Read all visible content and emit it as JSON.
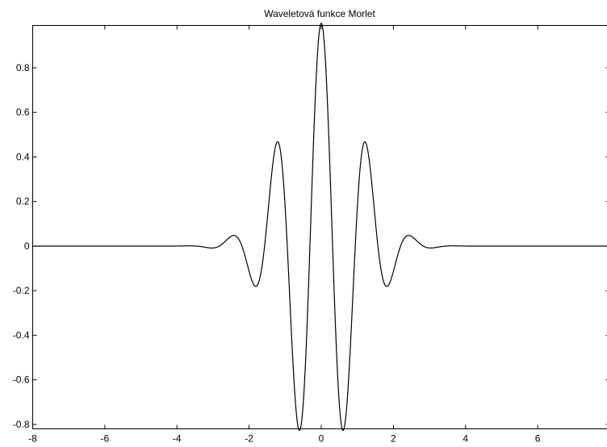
{
  "chart_data": {
    "type": "line",
    "title": "Waveletová funkce Morlet",
    "xlabel": "",
    "ylabel": "",
    "xlim": [
      -8,
      8
    ],
    "ylim": [
      -0.82,
      0.99
    ],
    "xticks": [
      -8,
      -6,
      -4,
      -2,
      0,
      2,
      4,
      6,
      8
    ],
    "yticks": [
      -0.8,
      -0.6,
      -0.4,
      -0.2,
      0,
      0.2,
      0.4,
      0.6,
      0.8
    ],
    "xtick_labels": [
      "-8",
      "-6",
      "-4",
      "-2",
      "0",
      "2",
      "4",
      "6",
      "8"
    ],
    "ytick_labels": [
      "-0.8",
      "-0.6",
      "-0.4",
      "-0.2",
      "0",
      "0.2",
      "0.4",
      "0.6",
      "0.8"
    ],
    "grid": false,
    "legend": "none",
    "series": [
      {
        "function": "exp(-x^2/2)*cos(5x)",
        "x_range": [
          -8,
          8
        ],
        "color": "#000000"
      }
    ]
  }
}
